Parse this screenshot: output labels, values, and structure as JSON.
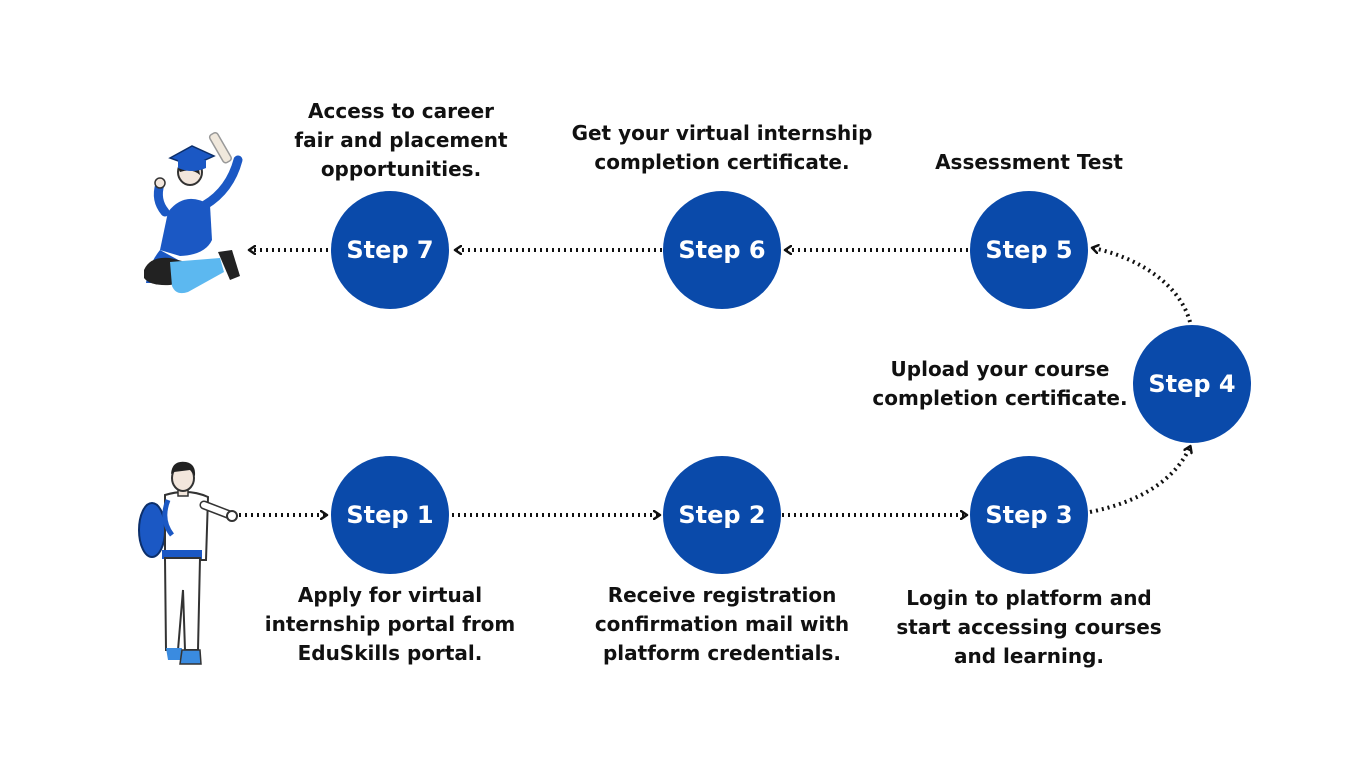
{
  "colors": {
    "step_fill": "#0a4aaa",
    "text": "#111111",
    "arrow": "#111111",
    "figure_blue": "#1b58c4"
  },
  "steps": [
    {
      "label": "Step 1",
      "caption": [
        "Apply for virtual",
        "internship portal from",
        "EduSkills portal."
      ]
    },
    {
      "label": "Step 2",
      "caption": [
        "Receive registration",
        "confirmation mail with",
        "platform credentials."
      ]
    },
    {
      "label": "Step 3",
      "caption": [
        "Login to platform and",
        "start accessing courses",
        "and learning."
      ]
    },
    {
      "label": "Step 4",
      "caption": [
        "Upload your course",
        "completion certificate."
      ]
    },
    {
      "label": "Step 5",
      "caption": [
        "Assessment Test"
      ]
    },
    {
      "label": "Step 6",
      "caption": [
        "Get your virtual internship",
        "completion certificate."
      ]
    },
    {
      "label": "Step 7",
      "caption": [
        "Access to career",
        "fair and placement",
        "opportunities."
      ]
    }
  ],
  "icons": {
    "start": "student-with-backpack-icon",
    "end": "jumping-graduate-icon"
  }
}
